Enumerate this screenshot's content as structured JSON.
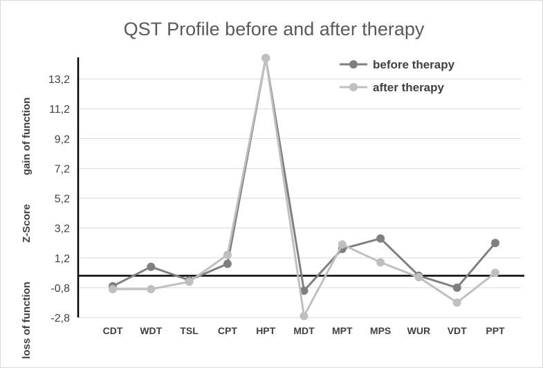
{
  "chart_data": {
    "type": "line",
    "title": "QST Profile before and after therapy",
    "categories": [
      "CDT",
      "WDT",
      "TSL",
      "CPT",
      "HPT",
      "MDT",
      "MPT",
      "MPS",
      "WUR",
      "VDT",
      "PPT"
    ],
    "series": [
      {
        "name": "before therapy",
        "color": "#7f7f7f",
        "values": [
          -0.7,
          0.6,
          -0.3,
          0.8,
          14.6,
          -1.0,
          1.8,
          2.5,
          0.0,
          -0.8,
          2.2
        ]
      },
      {
        "name": "after therapy",
        "color": "#bfbfbf",
        "values": [
          -0.9,
          -0.9,
          -0.4,
          1.4,
          14.6,
          -2.7,
          2.1,
          0.9,
          -0.1,
          -1.8,
          0.2
        ]
      }
    ],
    "yticks": [
      "13,2",
      "11,2",
      "9,2",
      "7,2",
      "5,2",
      "3,2",
      "1,2",
      "-0,8",
      "-2,8"
    ],
    "ytick_values": [
      13.2,
      11.2,
      9.2,
      7.2,
      5.2,
      3.2,
      1.2,
      -0.8,
      -2.8
    ],
    "ylim": [
      -2.8,
      15.2
    ],
    "ylabels": {
      "gain": "gain of function",
      "zscore": "Z-Score",
      "loss": "loss of function"
    },
    "legend_position": "top-right",
    "grid": true
  }
}
